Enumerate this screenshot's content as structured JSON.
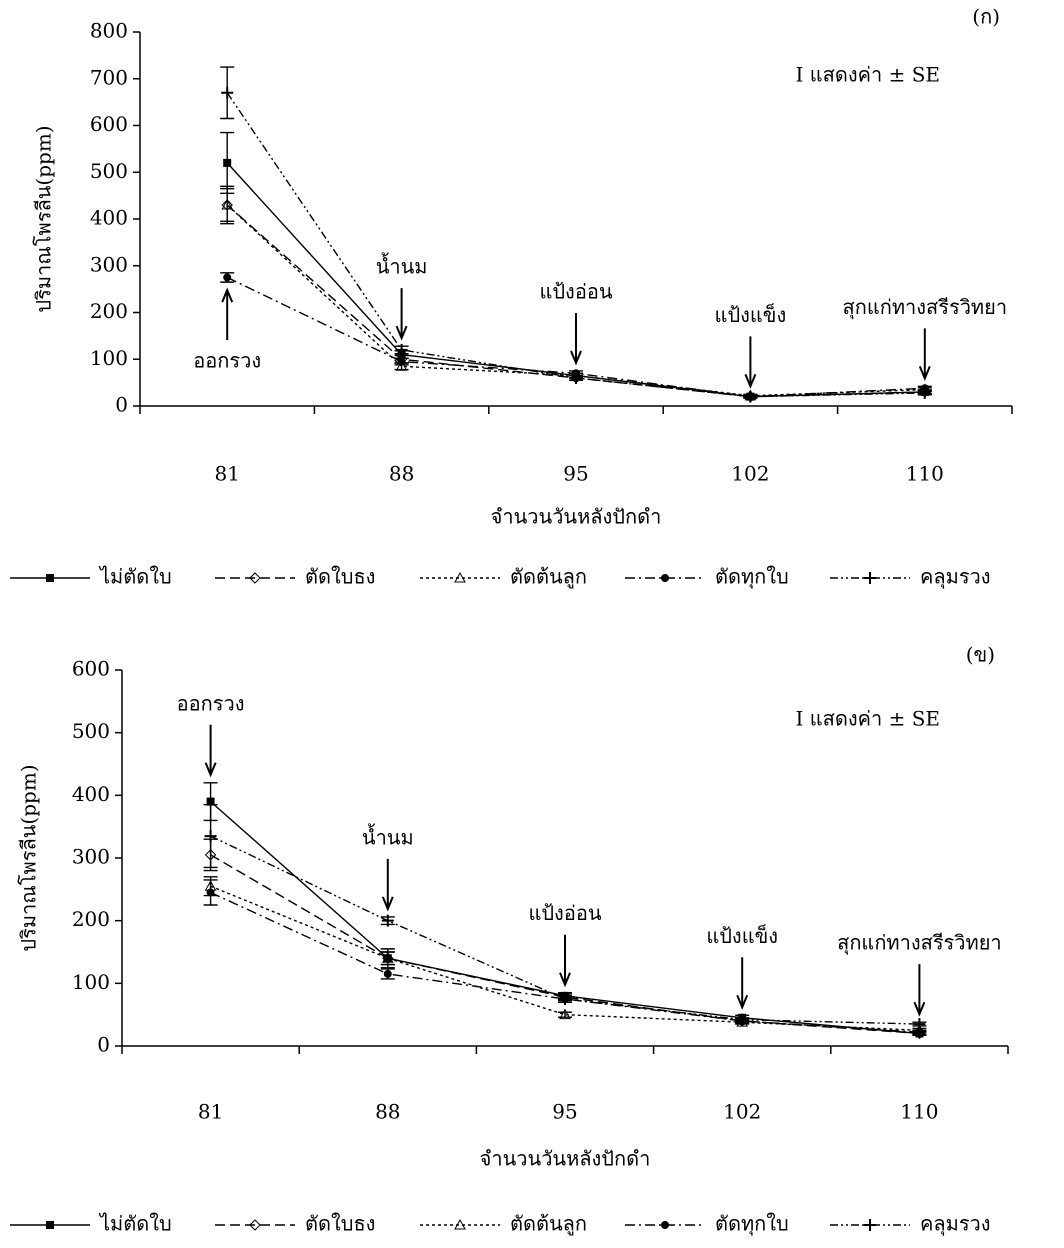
{
  "chart_data": [
    {
      "type": "line",
      "panel": "(ก)",
      "note": "I แสดงค่า ± SE",
      "x_label": "จำนวนวันหลังปักดำ",
      "y_label": "ปริมาณโพรลีน(ppm)",
      "categories": [
        "81",
        "88",
        "95",
        "102",
        "110"
      ],
      "stage_labels": [
        "ออกรวง",
        "น้ำนม",
        "แป้งอ่อน",
        "แป้งแข็ง",
        "สุกแก่ทางสรีรวิทยา"
      ],
      "ylim": [
        0,
        800
      ],
      "yticks": [
        0,
        100,
        200,
        300,
        400,
        500,
        600,
        700,
        800
      ],
      "series": [
        {
          "name": "ไม่ตัดใบ",
          "color": "#000000",
          "values": [
            520,
            110,
            65,
            20,
            30
          ],
          "errors": [
            65,
            8,
            5,
            3,
            4
          ]
        },
        {
          "name": "ตัดใบธง",
          "color": "#000000",
          "values": [
            430,
            100,
            60,
            20,
            30
          ],
          "errors": [
            40,
            8,
            5,
            3,
            4
          ]
        },
        {
          "name": "ตัดต้นลูก",
          "color": "#000000",
          "values": [
            430,
            85,
            65,
            22,
            35
          ],
          "errors": [
            35,
            7,
            5,
            3,
            4
          ]
        },
        {
          "name": "ตัดทุกใบ",
          "color": "#000000",
          "values": [
            275,
            95,
            70,
            20,
            38
          ],
          "errors": [
            10,
            7,
            5,
            3,
            4
          ]
        },
        {
          "name": "คลุมรวง",
          "color": "#000000",
          "values": [
            670,
            120,
            60,
            20,
            28
          ],
          "errors": [
            55,
            8,
            5,
            3,
            4
          ]
        }
      ]
    },
    {
      "type": "line",
      "panel": "(ข)",
      "note": "I แสดงค่า ± SE",
      "x_label": "จำนวนวันหลังปักดำ",
      "y_label": "ปริมาณโพรลีน(ppm)",
      "categories": [
        "81",
        "88",
        "95",
        "102",
        "110"
      ],
      "stage_labels": [
        "ออกรวง",
        "น้ำนม",
        "แป้งอ่อน",
        "แป้งแข็ง",
        "สุกแก่ทางสรีรวิทยา"
      ],
      "ylim": [
        0,
        600
      ],
      "yticks": [
        0,
        100,
        200,
        300,
        400,
        500,
        600
      ],
      "series": [
        {
          "name": "ไม่ตัดใบ",
          "color": "#000000",
          "values": [
            390,
            140,
            80,
            45,
            20
          ],
          "errors": [
            30,
            15,
            5,
            4,
            3
          ]
        },
        {
          "name": "ตัดใบธง",
          "color": "#000000",
          "values": [
            305,
            140,
            78,
            40,
            20
          ],
          "errors": [
            25,
            10,
            5,
            4,
            3
          ]
        },
        {
          "name": "ตัดต้นลูก",
          "color": "#000000",
          "values": [
            255,
            140,
            50,
            38,
            25
          ],
          "errors": [
            15,
            10,
            4,
            3,
            3
          ]
        },
        {
          "name": "ตัดทุกใบ",
          "color": "#000000",
          "values": [
            245,
            115,
            75,
            40,
            22
          ],
          "errors": [
            20,
            8,
            5,
            3,
            3
          ]
        },
        {
          "name": "คลุมรวง",
          "color": "#000000",
          "values": [
            335,
            200,
            75,
            42,
            35
          ],
          "errors": [
            50,
            6,
            5,
            3,
            3
          ]
        }
      ]
    }
  ]
}
